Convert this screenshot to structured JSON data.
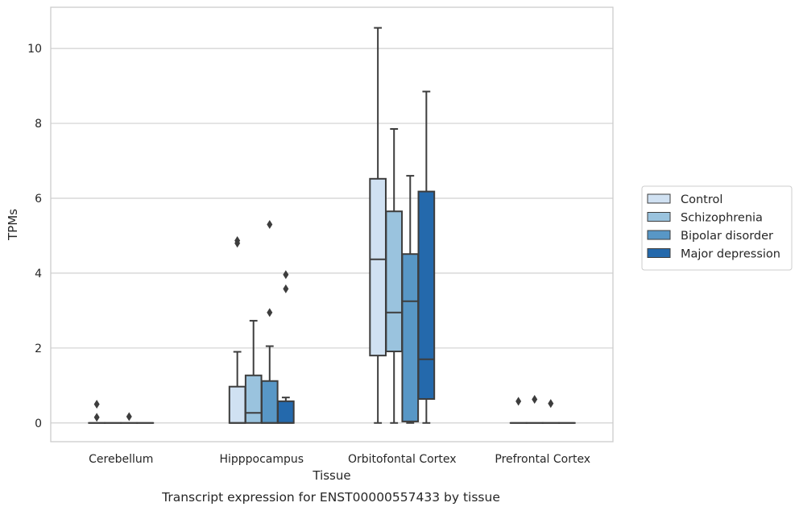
{
  "chart_data": {
    "type": "boxplot",
    "caption": "Transcript expression for ENST00000557433 by tissue",
    "xlabel": "Tissue",
    "ylabel": "TPMs",
    "ylim": [
      -0.5,
      11.1
    ],
    "yticks": [
      0,
      2,
      4,
      6,
      8,
      10
    ],
    "grid": true,
    "legend_position": "right",
    "categories": [
      "Cerebellum",
      "Hipppocampus",
      "Orbitofontal Cortex",
      "Prefrontal Cortex"
    ],
    "series": [
      {
        "name": "Control",
        "color": "#d0e1f2",
        "boxes": [
          {
            "whislo": 0,
            "q1": 0,
            "med": 0,
            "q3": 0,
            "whishi": 0,
            "fliers": [
              0.15,
              0.5
            ]
          },
          {
            "whislo": 0,
            "q1": 0,
            "med": 0,
            "q3": 0.97,
            "whishi": 1.9,
            "fliers": [
              4.8,
              4.87
            ]
          },
          {
            "whislo": 0,
            "q1": 1.8,
            "med": 4.37,
            "q3": 6.52,
            "whishi": 10.55,
            "fliers": []
          },
          {
            "whislo": 0,
            "q1": 0,
            "med": 0,
            "q3": 0,
            "whishi": 0,
            "fliers": [
              0.58
            ]
          }
        ]
      },
      {
        "name": "Schizophrenia",
        "color": "#9ac3de",
        "boxes": [
          {
            "whislo": 0,
            "q1": 0,
            "med": 0,
            "q3": 0,
            "whishi": 0,
            "fliers": []
          },
          {
            "whislo": 0,
            "q1": 0,
            "med": 0.27,
            "q3": 1.27,
            "whishi": 2.73,
            "fliers": []
          },
          {
            "whislo": 0,
            "q1": 1.91,
            "med": 2.95,
            "q3": 5.65,
            "whishi": 7.85,
            "fliers": []
          },
          {
            "whislo": 0,
            "q1": 0,
            "med": 0,
            "q3": 0,
            "whishi": 0,
            "fliers": [
              0.63
            ]
          }
        ]
      },
      {
        "name": "Bipolar disorder",
        "color": "#5897c6",
        "boxes": [
          {
            "whislo": 0,
            "q1": 0,
            "med": 0,
            "q3": 0,
            "whishi": 0,
            "fliers": [
              0.17
            ]
          },
          {
            "whislo": 0,
            "q1": 0,
            "med": 0,
            "q3": 1.12,
            "whishi": 2.05,
            "fliers": [
              2.95,
              5.3
            ]
          },
          {
            "whislo": 0,
            "q1": 0.04,
            "med": 3.25,
            "q3": 4.51,
            "whishi": 6.6,
            "fliers": []
          },
          {
            "whislo": 0,
            "q1": 0,
            "med": 0,
            "q3": 0,
            "whishi": 0,
            "fliers": [
              0.52
            ]
          }
        ]
      },
      {
        "name": "Major depression",
        "color": "#2469ac",
        "boxes": [
          {
            "whislo": 0,
            "q1": 0,
            "med": 0,
            "q3": 0,
            "whishi": 0,
            "fliers": []
          },
          {
            "whislo": 0,
            "q1": 0,
            "med": 0,
            "q3": 0.58,
            "whishi": 0.68,
            "fliers": [
              3.58,
              3.96
            ]
          },
          {
            "whislo": 0,
            "q1": 0.64,
            "med": 1.7,
            "q3": 6.18,
            "whishi": 8.85,
            "fliers": []
          },
          {
            "whislo": 0,
            "q1": 0,
            "med": 0,
            "q3": 0,
            "whishi": 0,
            "fliers": []
          }
        ]
      }
    ]
  }
}
